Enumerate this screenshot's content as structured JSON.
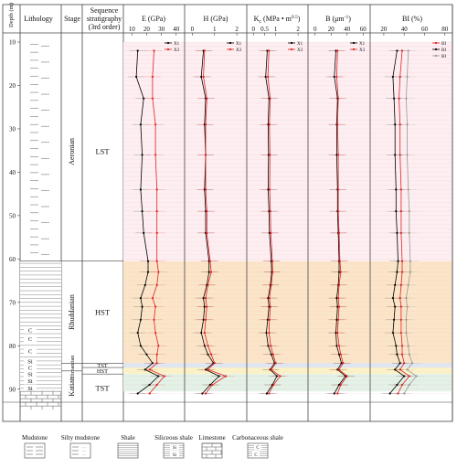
{
  "header": {
    "depth": "Depth (m)",
    "lithology": "Lithology",
    "stage": "Stage",
    "sequence": "Sequence stratigraphy (3rd order)"
  },
  "stages": [
    {
      "name": "Aeronian",
      "top": 10,
      "bottom": 60.5
    },
    {
      "name": "Rhuddanian",
      "top": 60.5,
      "bottom": 84
    },
    {
      "name": "Hirnantian",
      "top": 84,
      "bottom": 85.8
    },
    {
      "name": "Katian",
      "top": 85.8,
      "bottom": 93
    }
  ],
  "sequences": [
    {
      "name": "LST",
      "top": 10,
      "bottom": 60.5
    },
    {
      "name": "HST",
      "top": 60.5,
      "bottom": 84
    },
    {
      "name": "TST",
      "top": 84,
      "bottom": 85
    },
    {
      "name": "HST",
      "top": 85,
      "bottom": 86.5
    },
    {
      "name": "TST",
      "top": 86.5,
      "bottom": 93
    }
  ],
  "legend_lithology": [
    {
      "key": "mudstone",
      "label": "Mudstone"
    },
    {
      "key": "silty-mudstone",
      "label": "Silty mudstone"
    },
    {
      "key": "shale",
      "label": "Shale"
    },
    {
      "key": "siliceous-shale",
      "label": "Siliceous shale"
    },
    {
      "key": "limestone",
      "label": "Limestone"
    },
    {
      "key": "carbonaceous-shale",
      "label": "Carbonaceous shale"
    }
  ],
  "zone_colors": {
    "LST": "#fdeef1",
    "HST": "#fbe5c8",
    "TST_top": "#dfe6f3",
    "HST_thin": "#fbf3c8",
    "TST": "#e3f1e6"
  },
  "series_colors": {
    "X1": "#000000",
    "X3": "#e02020",
    "BI3": "#999999"
  },
  "chart_data": {
    "type": "line",
    "y_axis": {
      "label": "Depth (m)",
      "ylim": [
        10,
        93
      ],
      "ticks": [
        10,
        20,
        30,
        40,
        50,
        60,
        70,
        80,
        90
      ],
      "inverted": true
    },
    "depths": [
      12,
      18,
      23,
      29,
      36,
      44,
      49,
      54,
      60.5,
      63,
      66,
      69,
      71,
      74,
      77,
      80,
      82,
      84,
      85.5,
      87,
      89,
      91
    ],
    "panels": [
      {
        "title": "E (GPa)",
        "xlim": [
          8,
          42
        ],
        "xticks": [
          10,
          20,
          30,
          40
        ],
        "series": [
          {
            "name": "X1",
            "values": [
              14,
              13,
              18,
              16,
              17,
              16,
              17,
              18,
              21,
              21,
              19,
              16,
              17,
              16,
              14,
              16,
              20,
              24,
              19,
              28,
              22,
              14
            ]
          },
          {
            "name": "X3",
            "values": [
              25,
              24,
              24,
              26,
              26,
              27,
              27,
              27,
              27,
              28,
              27,
              24,
              26,
              25,
              26,
              28,
              27,
              27,
              22,
              32,
              27,
              22
            ]
          }
        ]
      },
      {
        "title": "H (GPa)",
        "xlim": [
          -0.1,
          2.2
        ],
        "xticks": [
          0,
          1,
          2
        ],
        "series": [
          {
            "name": "X1",
            "values": [
              0.5,
              0.4,
              0.6,
              0.55,
              0.6,
              0.55,
              0.6,
              0.6,
              0.75,
              0.75,
              0.65,
              0.5,
              0.55,
              0.5,
              0.4,
              0.55,
              0.7,
              0.95,
              0.6,
              1.2,
              0.8,
              0.45
            ]
          },
          {
            "name": "X3",
            "values": [
              0.55,
              0.5,
              0.65,
              0.6,
              0.6,
              0.6,
              0.65,
              0.65,
              0.8,
              0.85,
              0.7,
              0.6,
              0.65,
              0.6,
              0.55,
              0.7,
              0.85,
              1.0,
              0.7,
              1.5,
              0.9,
              0.6
            ]
          }
        ]
      },
      {
        "title": "Kc (MPa·m^0.5)",
        "xlim": [
          -0.05,
          2.2
        ],
        "xticks": [
          0,
          0.5,
          1.0,
          2.0
        ],
        "series": [
          {
            "name": "X1",
            "values": [
              0.62,
              0.55,
              0.7,
              0.66,
              0.68,
              0.66,
              0.7,
              0.72,
              0.8,
              0.82,
              0.76,
              0.66,
              0.7,
              0.64,
              0.58,
              0.66,
              0.8,
              0.95,
              0.75,
              1.05,
              0.85,
              0.6
            ]
          },
          {
            "name": "X3",
            "values": [
              0.7,
              0.65,
              0.75,
              0.72,
              0.74,
              0.73,
              0.76,
              0.78,
              0.85,
              0.86,
              0.8,
              0.72,
              0.76,
              0.72,
              0.7,
              0.78,
              0.88,
              1.0,
              0.8,
              1.2,
              0.9,
              0.7
            ]
          }
        ]
      },
      {
        "title": "B (μm^-1)",
        "xlim": [
          -2,
          62
        ],
        "xticks": [
          0,
          20,
          40,
          60
        ],
        "series": [
          {
            "name": "X1",
            "values": [
              26,
              24,
              28,
              27,
              27,
              28,
              28,
              29,
              30,
              30,
              29,
              27,
              28,
              27,
              26,
              27,
              30,
              33,
              28,
              38,
              30,
              24
            ]
          },
          {
            "name": "X3",
            "values": [
              28,
              27,
              29,
              28,
              29,
              29,
              29,
              30,
              31,
              32,
              30,
              29,
              30,
              29,
              28,
              30,
              32,
              35,
              30,
              40,
              32,
              28
            ]
          }
        ]
      },
      {
        "title": "BI (%)",
        "xlim": [
          12,
          82
        ],
        "xticks": [
          20,
          40,
          60,
          80
        ],
        "series": [
          {
            "name": "BI1",
            "values": [
              38,
              36,
              35,
              36,
              36,
              37,
              37,
              37,
              38,
              38,
              37,
              36,
              37,
              37,
              37,
              38,
              38,
              40,
              36,
              45,
              38,
              34
            ]
          },
          {
            "name": "BI2",
            "values": [
              33,
              29,
              30,
              31,
              31,
              32,
              32,
              33,
              34,
              33,
              31,
              29,
              31,
              30,
              29,
              32,
              33,
              36,
              31,
              40,
              33,
              26
            ]
          },
          {
            "name": "BI3",
            "values": [
              44,
              43,
              42,
              43,
              43,
              44,
              45,
              45,
              46,
              46,
              44,
              42,
              43,
              42,
              42,
              44,
              45,
              48,
              43,
              52,
              45,
              40
            ]
          }
        ]
      }
    ]
  },
  "panel_headers": {
    "E": {
      "base": "E (GPa)"
    },
    "H": {
      "base": "H (GPa)"
    },
    "K": {
      "pre": "K",
      "sub": "c",
      "mid": " (MPa • m",
      "sup": "0.5",
      "post": ")"
    },
    "B": {
      "pre": "B (μm",
      "sup": "-1",
      "post": ")"
    },
    "BI": {
      "base": "BI (%)"
    }
  },
  "series_legend": {
    "E": [
      "X1",
      "X3"
    ],
    "H": [
      "X1",
      "X3"
    ],
    "K": [
      "X1",
      "X3"
    ],
    "B": [
      "X1",
      "X3"
    ],
    "BI": [
      "BI",
      "BI",
      "BI"
    ]
  },
  "litho_symbols": [
    "C",
    "C",
    "C",
    "Si",
    "C",
    "Si",
    "Si",
    "Si"
  ]
}
